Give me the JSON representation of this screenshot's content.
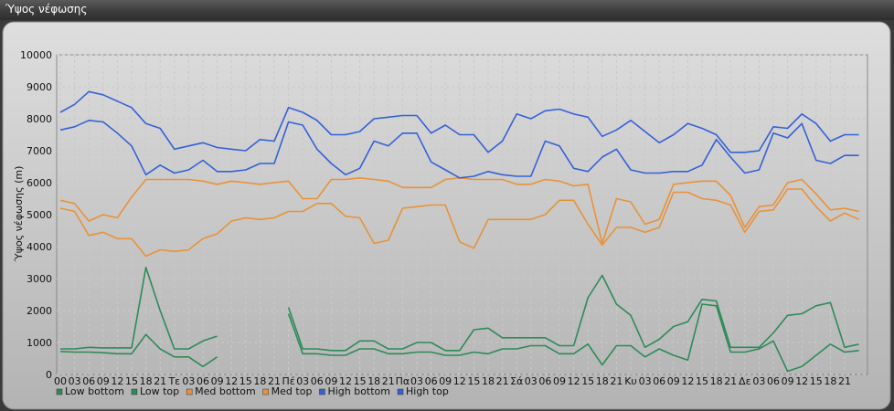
{
  "window": {
    "title": "Ύψος νέφωσης"
  },
  "colors": {
    "low": "#2e8b57",
    "med": "#e8923a",
    "high": "#3461d6"
  },
  "chart_data": {
    "type": "line",
    "ylabel": "Ύψος νέφωσης (m)",
    "ylim": [
      0,
      10000
    ],
    "yticks": [
      0,
      1000,
      2000,
      3000,
      4000,
      5000,
      6000,
      7000,
      8000,
      9000,
      10000
    ],
    "grid": true,
    "legend_position": "bottom-left",
    "x_tick_labels": [
      "00",
      "03",
      "06",
      "09",
      "12",
      "15",
      "18",
      "21",
      "Τε",
      "03",
      "06",
      "09",
      "12",
      "15",
      "18",
      "21",
      "Πέ",
      "03",
      "06",
      "09",
      "12",
      "15",
      "18",
      "21",
      "Πα",
      "03",
      "06",
      "09",
      "12",
      "15",
      "18",
      "21",
      "Σά",
      "03",
      "06",
      "09",
      "12",
      "15",
      "18",
      "21",
      "Κυ",
      "03",
      "06",
      "09",
      "12",
      "15",
      "18",
      "21",
      "Δε",
      "03",
      "06",
      "09",
      "12",
      "15",
      "18",
      "21"
    ],
    "series": [
      {
        "name": "Low bottom",
        "color_key": "low",
        "values": [
          720,
          700,
          700,
          680,
          650,
          650,
          1250,
          800,
          550,
          550,
          250,
          550,
          null,
          null,
          null,
          null,
          1900,
          650,
          650,
          600,
          600,
          800,
          800,
          650,
          650,
          700,
          700,
          600,
          600,
          700,
          650,
          800,
          800,
          900,
          900,
          650,
          650,
          950,
          300,
          900,
          900,
          550,
          800,
          600,
          450,
          2200,
          2150,
          700,
          700,
          800,
          1050,
          100,
          250,
          600,
          950,
          700,
          750
        ]
      },
      {
        "name": "Low top",
        "color_key": "low",
        "values": [
          800,
          800,
          850,
          830,
          830,
          830,
          3350,
          2000,
          800,
          800,
          1050,
          1200,
          null,
          null,
          null,
          null,
          2100,
          800,
          800,
          750,
          750,
          1050,
          1050,
          800,
          800,
          1000,
          1000,
          750,
          750,
          1400,
          1450,
          1150,
          1150,
          1150,
          1150,
          900,
          900,
          2400,
          3100,
          2200,
          1850,
          850,
          1100,
          1500,
          1650,
          2350,
          2300,
          850,
          850,
          850,
          1300,
          1850,
          1900,
          2150,
          2250,
          850,
          950
        ]
      },
      {
        "name": "Med bottom",
        "color_key": "med",
        "values": [
          5200,
          5100,
          4350,
          4450,
          4250,
          4250,
          3700,
          3900,
          3850,
          3900,
          4250,
          4400,
          4800,
          4900,
          4850,
          4900,
          5100,
          5100,
          5350,
          5350,
          4950,
          4900,
          4100,
          4200,
          5200,
          5250,
          5300,
          5300,
          4150,
          3950,
          4850,
          4850,
          4850,
          4850,
          5000,
          5450,
          5450,
          4700,
          4050,
          4600,
          4600,
          4450,
          4600,
          5700,
          5700,
          5500,
          5450,
          5300,
          4450,
          5100,
          5150,
          5800,
          5800,
          5250,
          4800,
          5050,
          4850
        ]
      },
      {
        "name": "Med top",
        "color_key": "med",
        "values": [
          5450,
          5350,
          4800,
          5000,
          4900,
          5550,
          6100,
          6100,
          6100,
          6100,
          6050,
          5950,
          6050,
          6000,
          5950,
          6000,
          6050,
          5500,
          5500,
          6100,
          6100,
          6150,
          6100,
          6050,
          5850,
          5850,
          5850,
          6100,
          6150,
          6100,
          6100,
          6100,
          5950,
          5950,
          6100,
          6050,
          5900,
          5950,
          4100,
          5500,
          5400,
          4700,
          4850,
          5950,
          6000,
          6050,
          6050,
          5600,
          4600,
          5250,
          5300,
          6000,
          6100,
          5650,
          5150,
          5200,
          5100
        ]
      },
      {
        "name": "High bottom",
        "color_key": "high",
        "values": [
          7650,
          7750,
          7950,
          7900,
          7550,
          7150,
          6250,
          6550,
          6300,
          6400,
          6700,
          6350,
          6350,
          6400,
          6600,
          6600,
          7900,
          7800,
          7050,
          6600,
          6250,
          6450,
          7300,
          7150,
          7550,
          7550,
          6650,
          6400,
          6150,
          6200,
          6350,
          6250,
          6200,
          6200,
          7300,
          7150,
          6450,
          6350,
          6800,
          7050,
          6400,
          6300,
          6300,
          6350,
          6350,
          6550,
          7350,
          6800,
          6300,
          6400,
          7550,
          7400,
          7850,
          6700,
          6600,
          6850,
          6850
        ]
      },
      {
        "name": "High top",
        "color_key": "high",
        "values": [
          8200,
          8450,
          8850,
          8750,
          8550,
          8350,
          7850,
          7700,
          7050,
          7150,
          7250,
          7100,
          7050,
          7000,
          7350,
          7300,
          8350,
          8200,
          7950,
          7500,
          7500,
          7600,
          8000,
          8050,
          8100,
          8100,
          7550,
          7800,
          7500,
          7500,
          6950,
          7300,
          8150,
          8000,
          8250,
          8300,
          8150,
          8050,
          7450,
          7650,
          7950,
          7600,
          7250,
          7500,
          7850,
          7700,
          7500,
          6950,
          6950,
          7000,
          7750,
          7700,
          8150,
          7850,
          7300,
          7500,
          7500
        ]
      }
    ]
  }
}
